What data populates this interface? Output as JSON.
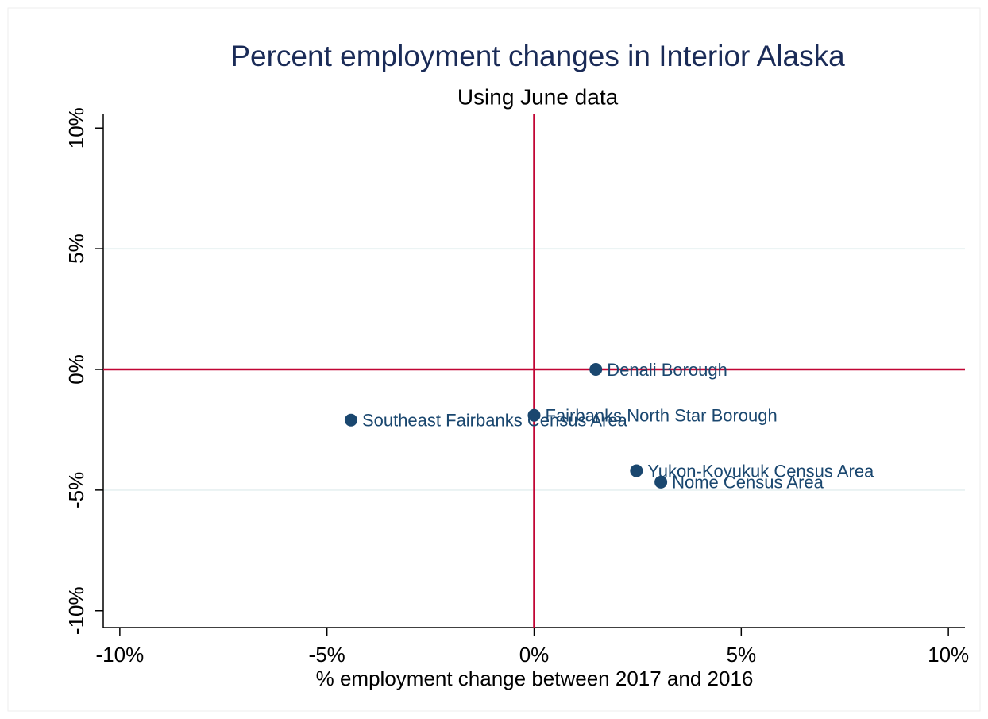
{
  "chart_data": {
    "type": "scatter",
    "title": "Percent employment changes in Interior Alaska",
    "subtitle": "Using June data",
    "x_label": "% employment change between 2017 and 2016",
    "labels": [
      "Denali Borough",
      "Fairbanks North Star Borough",
      "Southeast Fairbanks Census Area",
      "Yukon-Koyukuk Census Area",
      "Nome Census Area"
    ],
    "x": [
      1.49,
      0,
      -4.42,
      2.47,
      3.06
    ],
    "values": [
      0,
      -1.9,
      -2.1,
      -4.2,
      -4.67
    ],
    "color": "#1a476f",
    "xlim": [
      -10.4,
      10.4
    ],
    "ylim": [
      -10.7,
      10.6
    ],
    "xticks": [
      {
        "value": -10,
        "label": "-10%"
      },
      {
        "value": -5,
        "label": "-5%"
      },
      {
        "value": 0,
        "label": "0%"
      },
      {
        "value": 5,
        "label": "5%"
      },
      {
        "value": 10,
        "label": "10%"
      }
    ],
    "yticks": [
      {
        "value": -10,
        "label": "-10%"
      },
      {
        "value": -5,
        "label": "-5%"
      },
      {
        "value": 0,
        "label": "0%"
      },
      {
        "value": 5,
        "label": "5%"
      },
      {
        "value": 10,
        "label": "10%"
      }
    ],
    "grid": true,
    "xline": 0,
    "yline": 0,
    "reference_line_color": "#c10534"
  }
}
